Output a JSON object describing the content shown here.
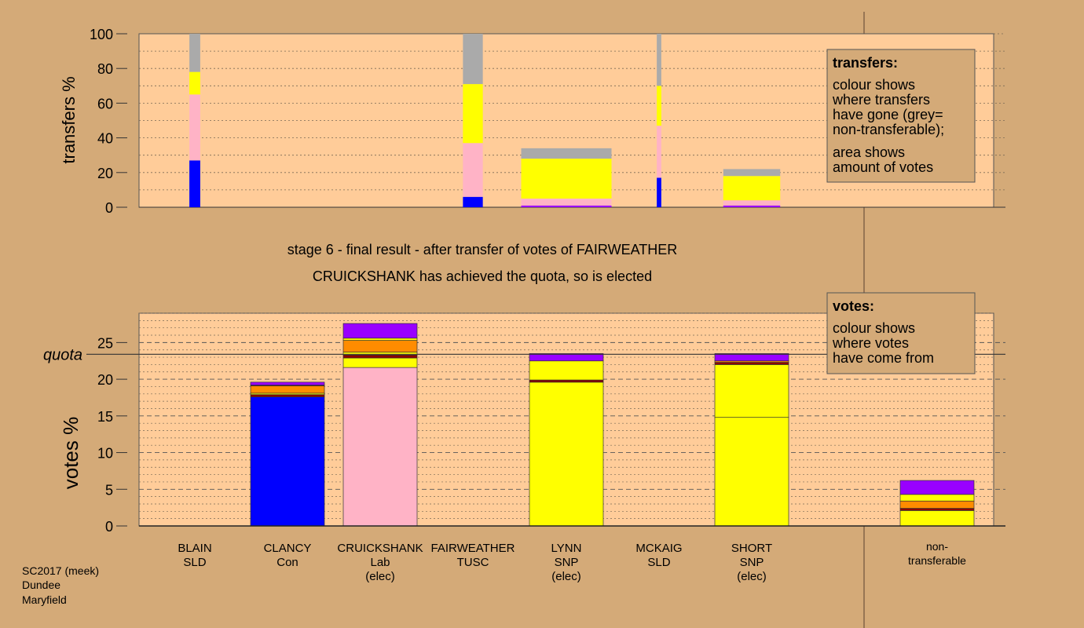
{
  "colors": {
    "background": "#d4aa78",
    "plot_background": "#ffcc99",
    "Con": "#0000ff",
    "Lab": "#ffb3c6",
    "SNP": "#ffff00",
    "SLD": "#ff8c00",
    "TUSC": "#8b0000",
    "nontransferable": "#aaaaaa",
    "top_layer": "#9900ff"
  },
  "stage_title": "stage 6 - final result - after transfer of votes of FAIRWEATHER",
  "stage_subtitle": "CRUICKSHANK has achieved the quota, so is elected",
  "footer": [
    "SC2017 (meek)",
    "Dundee",
    "Maryfield"
  ],
  "chart_data": [
    {
      "type": "bar",
      "name": "transfers",
      "ylabel": "transfers %",
      "ylim": [
        0,
        100
      ],
      "yticks": [
        0,
        20,
        40,
        60,
        80,
        100
      ],
      "legend": {
        "title": "transfers:",
        "lines": [
          "colour shows",
          "where transfers",
          "have gone (grey=",
          "non-transferable);",
          "area shows",
          "amount of votes"
        ]
      },
      "categories": [
        "BLAIN",
        "CLANCY",
        "CRUICKSHANK",
        "FAIRWEATHER",
        "LYNN",
        "MCKAIG",
        "SHORT",
        "non-transferable"
      ],
      "bars": [
        {
          "candidate": "BLAIN",
          "width_share": 0.12,
          "segments": [
            {
              "party": "Con",
              "value": 27
            },
            {
              "party": "Lab",
              "value": 38
            },
            {
              "party": "SNP",
              "value": 13
            },
            {
              "party": "nontransferable",
              "value": 22
            }
          ]
        },
        {
          "candidate": "FAIRWEATHER",
          "width_share": 0.22,
          "segments": [
            {
              "party": "Con",
              "value": 6
            },
            {
              "party": "Lab",
              "value": 31
            },
            {
              "party": "SNP",
              "value": 34
            },
            {
              "party": "nontransferable",
              "value": 29
            }
          ]
        },
        {
          "candidate": "LYNN",
          "width_share": 1.0,
          "segments": [
            {
              "party": "top_layer",
              "value": 1
            },
            {
              "party": "Lab",
              "value": 4
            },
            {
              "party": "SNP",
              "value": 23
            },
            {
              "party": "nontransferable",
              "value": 6
            }
          ]
        },
        {
          "candidate": "MCKAIG",
          "width_share": 0.05,
          "segments": [
            {
              "party": "Con",
              "value": 17
            },
            {
              "party": "Lab",
              "value": 30
            },
            {
              "party": "SNP",
              "value": 23
            },
            {
              "party": "nontransferable",
              "value": 30
            }
          ]
        },
        {
          "candidate": "SHORT",
          "width_share": 0.63,
          "segments": [
            {
              "party": "top_layer",
              "value": 1
            },
            {
              "party": "Lab",
              "value": 3
            },
            {
              "party": "SNP",
              "value": 14
            },
            {
              "party": "nontransferable",
              "value": 4
            }
          ]
        }
      ]
    },
    {
      "type": "bar",
      "name": "votes",
      "ylabel": "votes %",
      "ylim": [
        0,
        29
      ],
      "yticks": [
        0,
        5,
        10,
        15,
        20,
        25
      ],
      "quota": 23.4,
      "quota_label": "quota",
      "legend": {
        "title": "votes:",
        "lines": [
          "colour shows",
          "where votes",
          "have come from"
        ]
      },
      "categories": [
        {
          "name": "BLAIN",
          "party": "SLD",
          "status": ""
        },
        {
          "name": "CLANCY",
          "party": "Con",
          "status": ""
        },
        {
          "name": "CRUICKSHANK",
          "party": "Lab",
          "status": "(elec)"
        },
        {
          "name": "FAIRWEATHER",
          "party": "TUSC",
          "status": ""
        },
        {
          "name": "LYNN",
          "party": "SNP",
          "status": "(elec)"
        },
        {
          "name": "MCKAIG",
          "party": "SLD",
          "status": ""
        },
        {
          "name": "SHORT",
          "party": "SNP",
          "status": "(elec)"
        },
        {
          "name": "non-",
          "party": "transferable",
          "status": ""
        }
      ],
      "bars": [
        {
          "candidate": "CLANCY",
          "segments": [
            {
              "party": "Con",
              "value": 17.6
            },
            {
              "party": "TUSC",
              "value": 0.3
            },
            {
              "party": "SNP",
              "value": 0.2
            },
            {
              "party": "SLD",
              "value": 1.0
            },
            {
              "party": "TUSC",
              "value": 0.1
            },
            {
              "party": "top_layer",
              "value": 0.4
            }
          ]
        },
        {
          "candidate": "CRUICKSHANK",
          "segments": [
            {
              "party": "Lab",
              "value": 21.6
            },
            {
              "party": "SNP",
              "value": 1.3
            },
            {
              "party": "TUSC",
              "value": 0.4
            },
            {
              "party": "SNP",
              "value": 0.4
            },
            {
              "party": "SLD",
              "value": 1.6
            },
            {
              "party": "SNP",
              "value": 0.3
            },
            {
              "party": "top_layer",
              "value": 2.0
            }
          ]
        },
        {
          "candidate": "LYNN",
          "segments": [
            {
              "party": "SNP",
              "value": 19.6
            },
            {
              "party": "TUSC",
              "value": 0.3
            },
            {
              "party": "SNP",
              "value": 2.6
            },
            {
              "party": "top_layer",
              "value": 1.0
            }
          ]
        },
        {
          "candidate": "SHORT",
          "segments": [
            {
              "party": "SNP",
              "value": 14.8
            },
            {
              "party": "SNP",
              "value": 7.2
            },
            {
              "party": "TUSC",
              "value": 0.3
            },
            {
              "party": "SLD",
              "value": 0.2
            },
            {
              "party": "top_layer",
              "value": 1.0
            }
          ]
        },
        {
          "candidate": "non-transferable",
          "segments": [
            {
              "party": "SNP",
              "value": 2.1
            },
            {
              "party": "TUSC",
              "value": 0.3
            },
            {
              "party": "SLD",
              "value": 1.0
            },
            {
              "party": "SNP",
              "value": 0.9
            },
            {
              "party": "top_layer",
              "value": 1.9
            }
          ]
        }
      ]
    }
  ]
}
